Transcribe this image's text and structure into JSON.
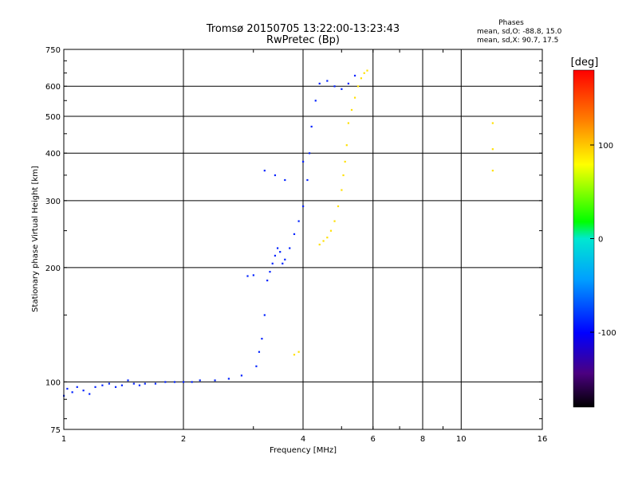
{
  "chart_data": {
    "type": "scatter",
    "title": "Tromsø 20150705 13:22:00-13:23:43",
    "subtitle": "RwPretec (Bp)",
    "xlabel": "Frequency [MHz]",
    "ylabel": "Stationary phase Virtual Height [km]",
    "x_scale": "log",
    "y_scale": "log",
    "xlim": [
      1,
      16
    ],
    "ylim": [
      75,
      750
    ],
    "x_ticks": [
      "1",
      "2",
      "4",
      "6",
      "8",
      "10",
      "16"
    ],
    "y_ticks": [
      "75",
      "100",
      "200",
      "300",
      "400",
      "500",
      "600",
      "750"
    ],
    "grid": true,
    "legend": {
      "title": "Phases",
      "lines": [
        "mean, sd,O: -88.8, 15.0",
        "mean, sd,X:  90.7, 17.5"
      ]
    },
    "colorbar": {
      "label": "[deg]",
      "range": [
        -180,
        180
      ],
      "ticks": [
        "100",
        "0",
        "-100"
      ],
      "tick_values": [
        100,
        0,
        -100
      ]
    },
    "series": [
      {
        "name": "O",
        "phase_mean": -88.8,
        "phase_sd": 15.0,
        "points": [
          [
            1.0,
            92
          ],
          [
            1.02,
            96
          ],
          [
            1.05,
            94
          ],
          [
            1.08,
            97
          ],
          [
            1.12,
            95
          ],
          [
            1.16,
            93
          ],
          [
            1.2,
            97
          ],
          [
            1.25,
            98
          ],
          [
            1.3,
            99
          ],
          [
            1.35,
            97
          ],
          [
            1.4,
            98
          ],
          [
            1.45,
            101
          ],
          [
            1.5,
            99
          ],
          [
            1.55,
            98
          ],
          [
            1.6,
            99
          ],
          [
            1.7,
            99
          ],
          [
            1.8,
            100
          ],
          [
            1.9,
            100
          ],
          [
            2.0,
            100
          ],
          [
            2.1,
            100
          ],
          [
            2.2,
            101
          ],
          [
            2.4,
            101
          ],
          [
            2.6,
            102
          ],
          [
            2.8,
            104
          ],
          [
            2.9,
            190
          ],
          [
            3.0,
            191
          ],
          [
            3.05,
            110
          ],
          [
            3.1,
            120
          ],
          [
            3.15,
            130
          ],
          [
            3.2,
            150
          ],
          [
            3.25,
            185
          ],
          [
            3.3,
            195
          ],
          [
            3.35,
            205
          ],
          [
            3.4,
            215
          ],
          [
            3.45,
            225
          ],
          [
            3.5,
            220
          ],
          [
            3.55,
            205
          ],
          [
            3.6,
            210
          ],
          [
            3.7,
            225
          ],
          [
            3.8,
            245
          ],
          [
            3.9,
            265
          ],
          [
            4.0,
            290
          ],
          [
            4.1,
            340
          ],
          [
            4.15,
            400
          ],
          [
            4.2,
            470
          ],
          [
            4.3,
            550
          ],
          [
            4.4,
            610
          ],
          [
            4.6,
            620
          ],
          [
            4.8,
            600
          ],
          [
            5.0,
            590
          ],
          [
            5.2,
            610
          ],
          [
            5.4,
            640
          ],
          [
            3.2,
            360
          ],
          [
            3.4,
            350
          ],
          [
            3.6,
            340
          ],
          [
            4.0,
            380
          ]
        ]
      },
      {
        "name": "X",
        "phase_mean": 90.7,
        "phase_sd": 17.5,
        "points": [
          [
            3.8,
            118
          ],
          [
            3.9,
            120
          ],
          [
            4.4,
            230
          ],
          [
            4.5,
            235
          ],
          [
            4.6,
            240
          ],
          [
            4.7,
            250
          ],
          [
            4.8,
            265
          ],
          [
            4.9,
            290
          ],
          [
            5.0,
            320
          ],
          [
            5.05,
            350
          ],
          [
            5.1,
            380
          ],
          [
            5.15,
            420
          ],
          [
            5.2,
            480
          ],
          [
            5.3,
            520
          ],
          [
            5.4,
            560
          ],
          [
            5.5,
            600
          ],
          [
            5.6,
            630
          ],
          [
            5.7,
            650
          ],
          [
            5.8,
            660
          ],
          [
            12.0,
            480
          ],
          [
            12.0,
            410
          ],
          [
            12.0,
            360
          ]
        ]
      }
    ]
  }
}
